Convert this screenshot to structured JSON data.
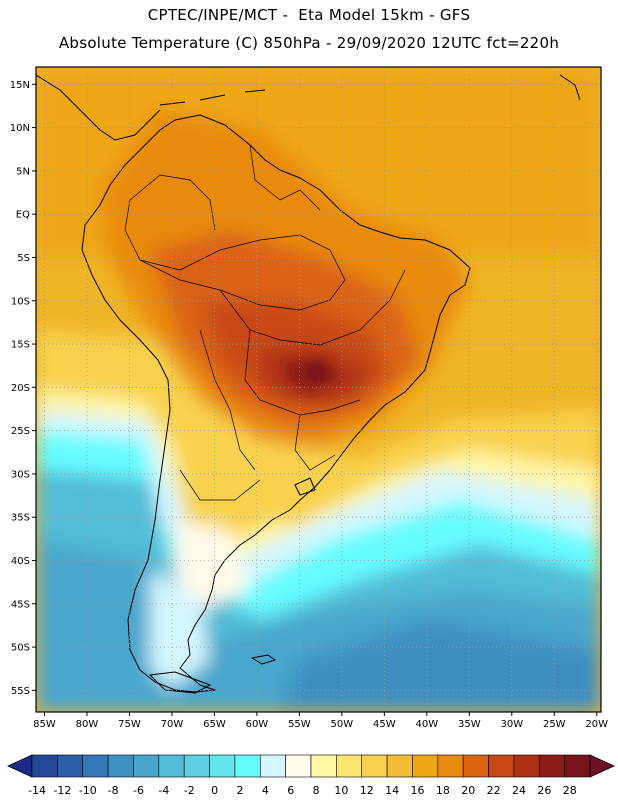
{
  "header": {
    "line1": "CPTEC/INPE/MCT -  Eta Model 15km - GFS",
    "line2": "Absolute Temperature (C) 850hPa - 29/09/2020 12UTC fct=220h"
  },
  "map": {
    "lat_min": -57.5,
    "lat_max": 17,
    "lon_min": -86,
    "lon_max": -19.5,
    "lat_ticks": [
      {
        "value": 15,
        "label": "15N"
      },
      {
        "value": 10,
        "label": "10N"
      },
      {
        "value": 5,
        "label": "5N"
      },
      {
        "value": 0,
        "label": "EQ"
      },
      {
        "value": -5,
        "label": "5S"
      },
      {
        "value": -10,
        "label": "10S"
      },
      {
        "value": -15,
        "label": "15S"
      },
      {
        "value": -20,
        "label": "20S"
      },
      {
        "value": -25,
        "label": "25S"
      },
      {
        "value": -30,
        "label": "30S"
      },
      {
        "value": -35,
        "label": "35S"
      },
      {
        "value": -40,
        "label": "40S"
      },
      {
        "value": -45,
        "label": "45S"
      },
      {
        "value": -50,
        "label": "50S"
      },
      {
        "value": -55,
        "label": "55S"
      }
    ],
    "lon_ticks": [
      {
        "value": -85,
        "label": "85W"
      },
      {
        "value": -80,
        "label": "80W"
      },
      {
        "value": -75,
        "label": "75W"
      },
      {
        "value": -70,
        "label": "70W"
      },
      {
        "value": -65,
        "label": "65W"
      },
      {
        "value": -60,
        "label": "60W"
      },
      {
        "value": -55,
        "label": "55W"
      },
      {
        "value": -50,
        "label": "50W"
      },
      {
        "value": -45,
        "label": "45W"
      },
      {
        "value": -40,
        "label": "40W"
      },
      {
        "value": -35,
        "label": "35W"
      },
      {
        "value": -30,
        "label": "30W"
      },
      {
        "value": -25,
        "label": "25W"
      },
      {
        "value": -20,
        "label": "20W"
      }
    ]
  },
  "colorbar": {
    "low_color": "#1e2a8a",
    "high_color": "#6e0f28",
    "colors": [
      "#24479a",
      "#2c5ea9",
      "#3578b6",
      "#3e8fc2",
      "#48a6cc",
      "#52bcd6",
      "#5ecfe0",
      "#62e6ee",
      "#66fbff",
      "#d4f7ff",
      "#fffaea",
      "#fff6a6",
      "#fde572",
      "#f8d24e",
      "#f2bd35",
      "#eea612",
      "#e98a10",
      "#db6412",
      "#c84816",
      "#ad3015",
      "#8b1c18",
      "#75141a"
    ],
    "labels": [
      "-14",
      "-12",
      "-10",
      "-8",
      "-6",
      "-4",
      "-2",
      "0",
      "2",
      "4",
      "6",
      "8",
      "10",
      "12",
      "14",
      "16",
      "18",
      "20",
      "22",
      "24",
      "26",
      "28"
    ]
  }
}
